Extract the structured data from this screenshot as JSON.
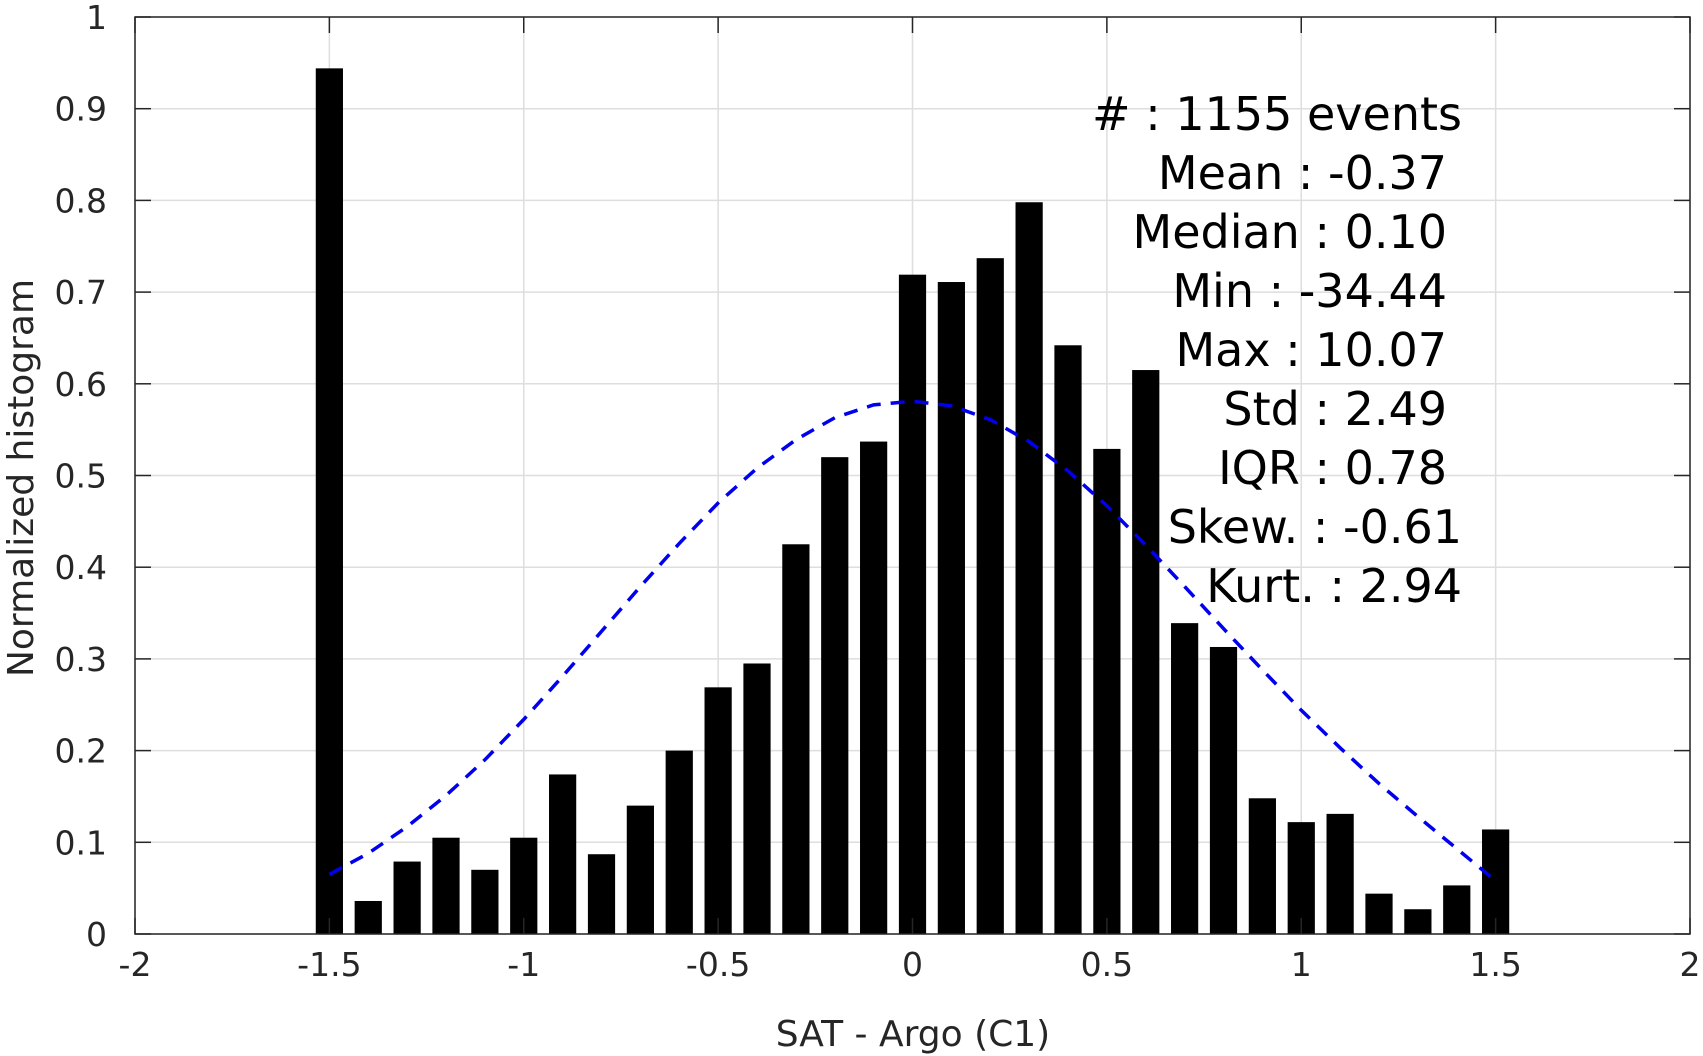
{
  "chart_data": {
    "type": "bar",
    "xlabel": "SAT - Argo (C1)",
    "ylabel": "Normalized histogram",
    "xlim": [
      -2,
      2
    ],
    "ylim": [
      0,
      1
    ],
    "xticks": [
      -2,
      -1.5,
      -1,
      -0.5,
      0,
      0.5,
      1,
      1.5,
      2
    ],
    "xtick_labels": [
      "-2",
      "-1.5",
      "-1",
      "-0.5",
      "0",
      "0.5",
      "1",
      "1.5",
      "2"
    ],
    "yticks": [
      0,
      0.1,
      0.2,
      0.3,
      0.4,
      0.5,
      0.6,
      0.7,
      0.8,
      0.9,
      1
    ],
    "ytick_labels": [
      "0",
      "0.1",
      "0.2",
      "0.3",
      "0.4",
      "0.5",
      "0.6",
      "0.7",
      "0.8",
      "0.9",
      "1"
    ],
    "grid": true,
    "bar_color": "#000000",
    "bar_width": 0.07,
    "bars": {
      "x": [
        -1.5,
        -1.4,
        -1.3,
        -1.2,
        -1.1,
        -1.0,
        -0.9,
        -0.8,
        -0.7,
        -0.6,
        -0.5,
        -0.4,
        -0.3,
        -0.2,
        -0.1,
        0.0,
        0.1,
        0.2,
        0.3,
        0.4,
        0.5,
        0.6,
        0.7,
        0.8,
        0.9,
        1.0,
        1.1,
        1.2,
        1.3,
        1.4,
        1.5
      ],
      "values": [
        0.944,
        0.036,
        0.079,
        0.105,
        0.07,
        0.105,
        0.174,
        0.087,
        0.14,
        0.2,
        0.269,
        0.295,
        0.425,
        0.52,
        0.537,
        0.719,
        0.711,
        0.737,
        0.798,
        0.642,
        0.529,
        0.615,
        0.339,
        0.313,
        0.148,
        0.122,
        0.131,
        0.044,
        0.027,
        0.053,
        0.114
      ]
    },
    "fit_curve": {
      "style": "dashed",
      "color": "#0000ee",
      "x": [
        -1.5,
        -1.4,
        -1.3,
        -1.2,
        -1.1,
        -1.0,
        -0.9,
        -0.8,
        -0.7,
        -0.6,
        -0.5,
        -0.4,
        -0.3,
        -0.2,
        -0.1,
        0.0,
        0.1,
        0.2,
        0.3,
        0.4,
        0.5,
        0.6,
        0.7,
        0.8,
        0.9,
        1.0,
        1.1,
        1.2,
        1.3,
        1.4,
        1.5
      ],
      "values": [
        0.065,
        0.088,
        0.117,
        0.151,
        0.19,
        0.234,
        0.281,
        0.33,
        0.379,
        0.426,
        0.47,
        0.508,
        0.539,
        0.563,
        0.577,
        0.581,
        0.576,
        0.561,
        0.537,
        0.505,
        0.467,
        0.424,
        0.379,
        0.333,
        0.288,
        0.244,
        0.203,
        0.164,
        0.128,
        0.093,
        0.058
      ]
    },
    "annotation_lines": [
      "#  : 1155 events",
      "Mean : -0.37",
      "Median : 0.10",
      "Min : -34.44",
      "Max : 10.07",
      "Std : 2.49",
      "IQR : 0.78",
      "Skew. : -0.61",
      "Kurt. : 2.94"
    ]
  }
}
